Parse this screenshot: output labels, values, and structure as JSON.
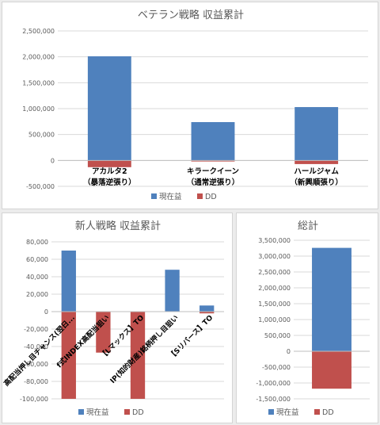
{
  "colors": {
    "profit": "#4f81bd",
    "dd": "#c0504d",
    "grid": "#d9d9d9",
    "axis": "#bfbfbf"
  },
  "chart_data": [
    {
      "type": "bar",
      "title": "ベテラン戦略 収益累計",
      "ylim": [
        -500000,
        2500000
      ],
      "yticks": [
        -500000,
        0,
        500000,
        1000000,
        1500000,
        2000000,
        2500000
      ],
      "ytick_labels": [
        "-500,000",
        "0",
        "500,000",
        "1,000,000",
        "1,500,000",
        "2,000,000",
        "2,500,000"
      ],
      "categories": [
        [
          "アカルタ2",
          "（暴落逆張り）"
        ],
        [
          "キラークイーン",
          "（通常逆張り）"
        ],
        [
          "ハールジャム",
          "（新興順張り）"
        ]
      ],
      "series": [
        {
          "name": "現在益",
          "values": [
            2010000,
            740000,
            1030000
          ]
        },
        {
          "name": "DD",
          "values": [
            -130000,
            -20000,
            -70000
          ]
        }
      ],
      "legend": "bottom"
    },
    {
      "type": "bar",
      "title": "新人戦略 収益累計",
      "ylim": [
        -100000,
        80000
      ],
      "yticks": [
        -100000,
        -80000,
        -60000,
        -40000,
        -20000,
        0,
        20000,
        40000,
        60000,
        80000
      ],
      "ytick_labels": [
        "-100,000",
        "-80,000",
        "-60,000",
        "-40,000",
        "-20,000",
        "0",
        "20,000",
        "40,000",
        "60,000",
        "80,000"
      ],
      "categories": [
        "高配当押し目チャンス(翌日...",
        "f式INDEX高配当狙い",
        "【Lマックス】TO",
        "IP(知的財産)銘柄押し目狙い",
        "【Sリバース】TO"
      ],
      "series": [
        {
          "name": "現在益",
          "values": [
            70000,
            0,
            0,
            48000,
            7000
          ]
        },
        {
          "name": "DD",
          "values": [
            -100000,
            -47000,
            -100000,
            0,
            -2000
          ]
        }
      ],
      "legend": "bottom"
    },
    {
      "type": "bar",
      "title": "総計",
      "ylim": [
        -1500000,
        3500000
      ],
      "yticks": [
        -1500000,
        -1000000,
        -500000,
        0,
        500000,
        1000000,
        1500000,
        2000000,
        2500000,
        3000000,
        3500000
      ],
      "ytick_labels": [
        "-1,500,000",
        "-1,000,000",
        "-500,000",
        "0",
        "500,000",
        "1,000,000",
        "1,500,000",
        "2,000,000",
        "2,500,000",
        "3,000,000",
        "3,500,000"
      ],
      "categories": [
        ""
      ],
      "series": [
        {
          "name": "現在益",
          "values": [
            3260000
          ]
        },
        {
          "name": "DD",
          "values": [
            -1180000
          ]
        }
      ],
      "legend": "bottom"
    }
  ]
}
